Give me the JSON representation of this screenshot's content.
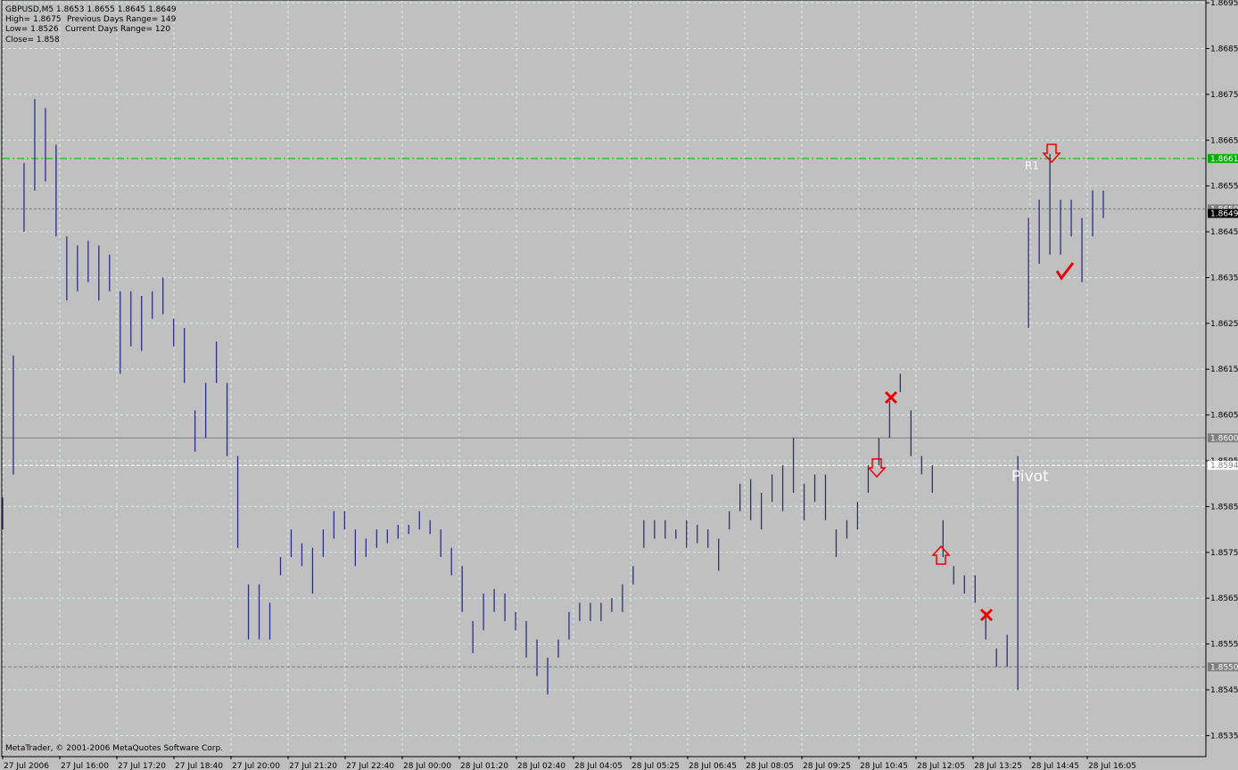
{
  "chart_data": {
    "type": "range_bar",
    "header": [
      "GBPUSD,M5  1.8653 1.8655 1.8645 1.8649",
      "High= 1.8675",
      "Previous Days Range= 149",
      "Low= 1.8526",
      "Current Days Range= 120",
      "Close= 1.858"
    ],
    "footer": "MetaTrader, © 2001-2006 MetaQuotes Software Corp.",
    "xlabels": [
      "27 Jul 2006",
      "27 Jul 16:00",
      "27 Jul 17:20",
      "27 Jul 18:40",
      "27 Jul 20:00",
      "27 Jul 21:20",
      "27 Jul 22:40",
      "28 Jul 00:00",
      "28 Jul 01:20",
      "28 Jul 02:40",
      "28 Jul 04:05",
      "28 Jul 05:25",
      "28 Jul 06:45",
      "28 Jul 08:05",
      "28 Jul 09:25",
      "28 Jul 10:45",
      "28 Jul 12:05",
      "28 Jul 13:25",
      "28 Jul 14:45",
      "28 Jul 16:05"
    ],
    "color": "#2e2e82",
    "high": [
      1.8587,
      1.8618,
      1.866,
      1.8674,
      1.8672,
      1.8664,
      1.8644,
      1.8642,
      1.8643,
      1.8642,
      1.864,
      1.8632,
      1.8632,
      1.8631,
      1.8632,
      1.8635,
      1.8626,
      1.8624,
      1.8606,
      1.8612,
      1.8621,
      1.8612,
      1.8596,
      1.8568,
      1.8568,
      1.8564,
      1.8574,
      1.858,
      1.8577,
      1.8576,
      1.858,
      1.8584,
      1.8584,
      1.858,
      1.8578,
      1.858,
      1.858,
      1.8581,
      1.8581,
      1.8584,
      1.8582,
      1.858,
      1.8576,
      1.8572,
      1.856,
      1.8566,
      1.8567,
      1.8566,
      1.8562,
      1.856,
      1.8556,
      1.8552,
      1.8556,
      1.8562,
      1.8564,
      1.8564,
      1.8564,
      1.8565,
      1.8568,
      1.8572,
      1.8582,
      1.8582,
      1.8582,
      1.858,
      1.8582,
      1.8581,
      1.858,
      1.8578,
      1.8584,
      1.859,
      1.8591,
      1.8588,
      1.8592,
      1.8594,
      1.86,
      1.859,
      1.8592,
      1.8592,
      1.858,
      1.8582,
      1.8586,
      1.8594,
      1.86,
      1.8608,
      1.8614,
      1.8606,
      1.8596,
      1.8594,
      1.8582,
      1.8572,
      1.857,
      1.857,
      1.8562,
      1.8554,
      1.8557,
      1.8596,
      1.8648,
      1.8652,
      1.8662,
      1.8652,
      1.8652,
      1.8648,
      1.8654,
      1.8654
    ],
    "low": [
      1.858,
      1.8592,
      1.8645,
      1.8654,
      1.8656,
      1.8644,
      1.863,
      1.8632,
      1.8634,
      1.863,
      1.8632,
      1.8614,
      1.862,
      1.8619,
      1.8626,
      1.8627,
      1.862,
      1.8612,
      1.8597,
      1.86,
      1.8612,
      1.8596,
      1.8576,
      1.8556,
      1.8556,
      1.8556,
      1.857,
      1.8574,
      1.8572,
      1.8566,
      1.8574,
      1.8578,
      1.858,
      1.8572,
      1.8574,
      1.8576,
      1.8577,
      1.8578,
      1.8579,
      1.858,
      1.8579,
      1.8574,
      1.857,
      1.8562,
      1.8553,
      1.8558,
      1.8562,
      1.856,
      1.8558,
      1.8552,
      1.8548,
      1.8544,
      1.8552,
      1.8556,
      1.856,
      1.856,
      1.856,
      1.8562,
      1.8562,
      1.8568,
      1.8576,
      1.8578,
      1.8578,
      1.8578,
      1.8576,
      1.8577,
      1.8576,
      1.8571,
      1.858,
      1.8584,
      1.8582,
      1.858,
      1.8586,
      1.8584,
      1.8588,
      1.8582,
      1.8586,
      1.8582,
      1.8574,
      1.8578,
      1.858,
      1.8588,
      1.8594,
      1.86,
      1.861,
      1.8596,
      1.8592,
      1.8588,
      1.8574,
      1.8568,
      1.8566,
      1.8564,
      1.8556,
      1.855,
      1.855,
      1.8545,
      1.8624,
      1.8638,
      1.864,
      1.864,
      1.8644,
      1.8634,
      1.8644,
      1.8648
    ],
    "ylim": [
      1.85306,
      1.86956
    ],
    "yticks": [
      1.8695,
      1.8685,
      1.8675,
      1.8665,
      1.8655,
      1.8645,
      1.8635,
      1.8625,
      1.8615,
      1.8605,
      1.8595,
      1.8585,
      1.8575,
      1.8565,
      1.8555,
      1.8545,
      1.8535
    ],
    "grid": true,
    "levels": [
      {
        "value": 1.8661,
        "label": "1.8661",
        "color": "#00b000",
        "dash": "8 3 2 3",
        "text": "R1",
        "text_color": "#ffffff"
      },
      {
        "value": 1.865,
        "label": "1.8650",
        "color": "#808080",
        "dash": "3 2"
      },
      {
        "value": 1.8649,
        "label": "1.8649",
        "color": "#000000"
      },
      {
        "value": 1.86,
        "label": "1.8600",
        "color": "#808080",
        "dash": ""
      },
      {
        "value": 1.8594,
        "label": "1.8594",
        "color": "#ffffff",
        "dash": "4 2",
        "text": "Pivot",
        "text_color": "#ffffff"
      },
      {
        "value": 1.855,
        "label": "1.8550",
        "color": "#808080",
        "dash": "4 2"
      }
    ]
  }
}
